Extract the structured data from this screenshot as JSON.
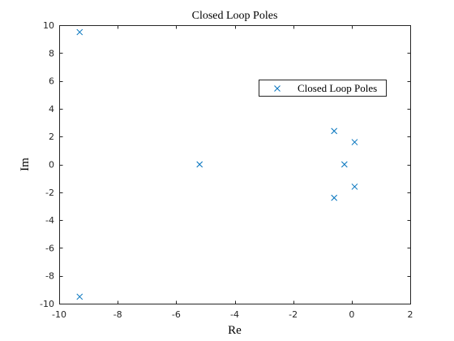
{
  "chart_data": {
    "type": "scatter",
    "title": "Closed Loop Poles",
    "xlabel": "Re",
    "ylabel": "Im",
    "xlim": [
      -10,
      2
    ],
    "ylim": [
      -10,
      10
    ],
    "xticks": [
      -10,
      -8,
      -6,
      -4,
      -2,
      0,
      2
    ],
    "yticks": [
      -10,
      -8,
      -6,
      -4,
      -2,
      0,
      2,
      4,
      6,
      8,
      10
    ],
    "grid": false,
    "legend_position": "top-right",
    "series": [
      {
        "name": "Closed Loop Poles",
        "marker": "x",
        "color": "#0072BD",
        "points": [
          {
            "x": -9.3,
            "y": 9.5
          },
          {
            "x": -9.3,
            "y": -9.5
          },
          {
            "x": -5.2,
            "y": 0
          },
          {
            "x": -0.6,
            "y": 2.4
          },
          {
            "x": -0.6,
            "y": -2.4
          },
          {
            "x": -0.25,
            "y": 0
          },
          {
            "x": 0.1,
            "y": 1.6
          },
          {
            "x": 0.1,
            "y": -1.6
          }
        ]
      }
    ]
  }
}
